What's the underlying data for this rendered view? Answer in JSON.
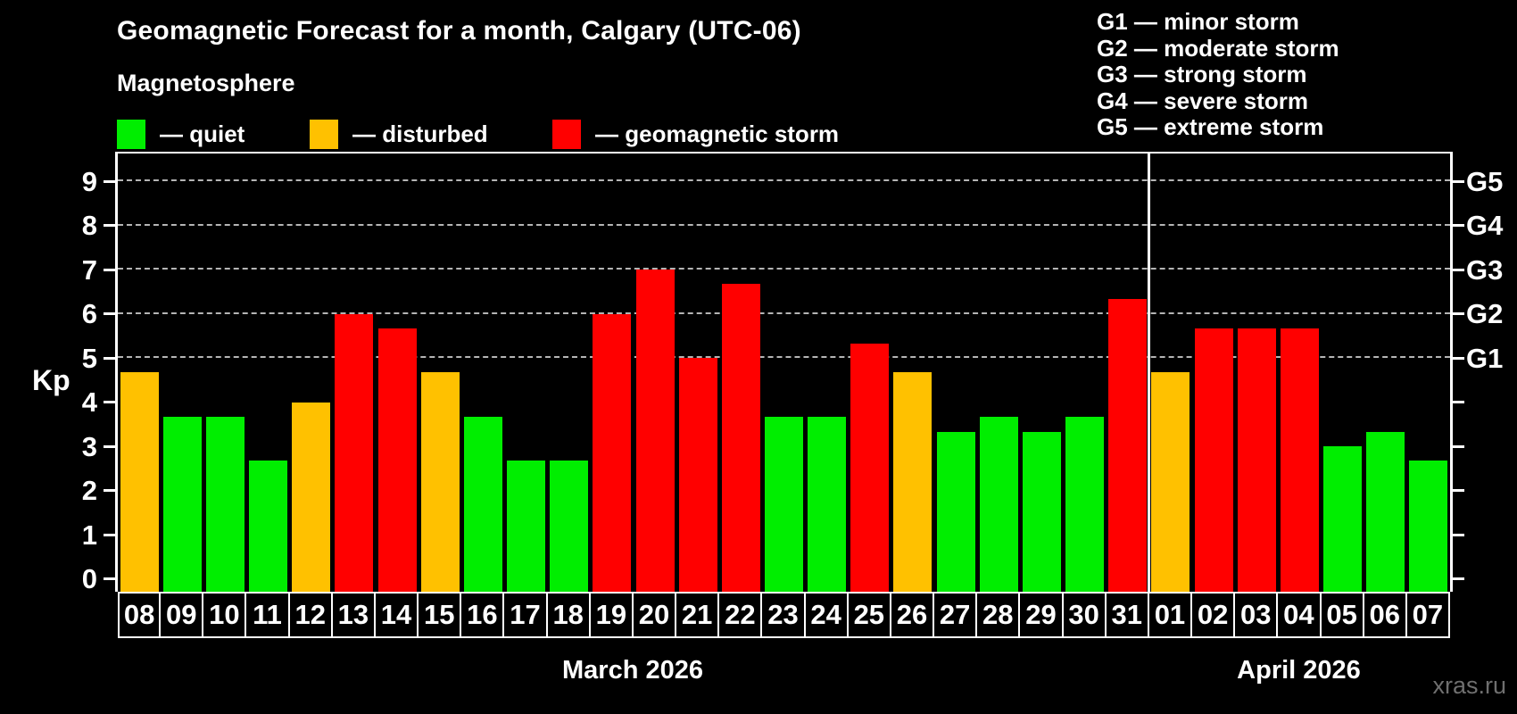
{
  "header": {
    "title": "Geomagnetic Forecast for a month, Calgary (UTC-06)",
    "subtitle": "Magnetosphere"
  },
  "legend": [
    {
      "key": "quiet",
      "label": "— quiet"
    },
    {
      "key": "disturbed",
      "label": "— disturbed"
    },
    {
      "key": "storm",
      "label": "— geomagnetic storm"
    }
  ],
  "g_legend": [
    "G1 — minor storm",
    "G2 — moderate storm",
    "G3 — strong storm",
    "G4 — severe storm",
    "G5 — extreme storm"
  ],
  "colors": {
    "quiet": "#00ee00",
    "disturbed": "#ffc100",
    "storm": "#ff0000"
  },
  "axes": {
    "y_label": "Kp",
    "y_ticks": [
      0,
      1,
      2,
      3,
      4,
      5,
      6,
      7,
      8,
      9
    ],
    "right_labels": [
      {
        "text": "G1",
        "value": 5
      },
      {
        "text": "G2",
        "value": 6
      },
      {
        "text": "G3",
        "value": 7
      },
      {
        "text": "G4",
        "value": 8
      },
      {
        "text": "G5",
        "value": 9
      }
    ]
  },
  "watermark": "xras.ru",
  "chart_data": {
    "type": "bar",
    "title": "Geomagnetic Forecast for a month, Calgary (UTC-06)",
    "ylabel": "Kp",
    "ylim": [
      0,
      9.7
    ],
    "gridlines": [
      5,
      6,
      7,
      8,
      9
    ],
    "legend_position": "top-left",
    "categories": [
      "08",
      "09",
      "10",
      "11",
      "12",
      "13",
      "14",
      "15",
      "16",
      "17",
      "18",
      "19",
      "20",
      "21",
      "22",
      "23",
      "24",
      "25",
      "26",
      "27",
      "28",
      "29",
      "30",
      "31",
      "01",
      "02",
      "03",
      "04",
      "05",
      "06",
      "07"
    ],
    "values": [
      4.67,
      3.67,
      3.67,
      2.67,
      4.0,
      6.0,
      5.67,
      4.67,
      3.67,
      2.67,
      2.67,
      6.0,
      7.0,
      5.0,
      6.67,
      3.67,
      3.67,
      5.33,
      4.67,
      3.33,
      3.67,
      3.33,
      3.67,
      6.33,
      4.67,
      5.67,
      5.67,
      5.67,
      3.0,
      3.33,
      2.67
    ],
    "statuses": [
      "disturbed",
      "quiet",
      "quiet",
      "quiet",
      "disturbed",
      "storm",
      "storm",
      "disturbed",
      "quiet",
      "quiet",
      "quiet",
      "storm",
      "storm",
      "storm",
      "storm",
      "quiet",
      "quiet",
      "storm",
      "disturbed",
      "quiet",
      "quiet",
      "quiet",
      "quiet",
      "storm",
      "disturbed",
      "storm",
      "storm",
      "storm",
      "quiet",
      "quiet",
      "quiet"
    ],
    "month_groups": [
      {
        "label": "March 2026",
        "count": 24
      },
      {
        "label": "April 2026",
        "count": 7
      }
    ]
  }
}
